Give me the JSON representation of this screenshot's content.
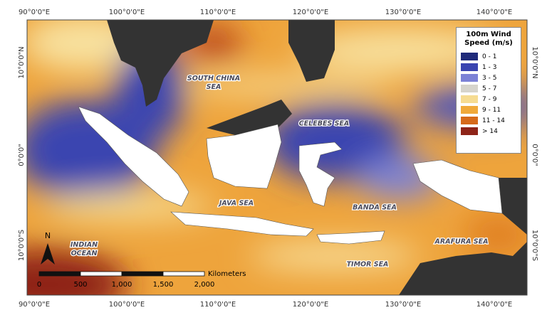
{
  "map": {
    "x_labels": [
      "90°0'0\"E",
      "100°0'0\"E",
      "110°0'0\"E",
      "120°0'0\"E",
      "130°0'0\"E",
      "140°0'0\"E"
    ],
    "y_labels": [
      "10°0'0\"N",
      "0°0'0\"",
      "10°0'0\"S"
    ],
    "sea_labels": [
      "SOUTH CHINA SEA",
      "CELEBES SEA",
      "JAVA SEA",
      "BANDA SEA",
      "INDIAN OCEAN",
      "ARAFURA SEA",
      "TIMOR SEA"
    ],
    "legend": {
      "title": "100m Wind Speed (m/s)",
      "items": [
        {
          "label": "0 - 1",
          "color": "#1f2a7a"
        },
        {
          "label": "1 - 3",
          "color": "#3a44b0"
        },
        {
          "label": "3 - 5",
          "color": "#7c82d6"
        },
        {
          "label": "5 - 7",
          "color": "#d6d4cc"
        },
        {
          "label": "7 - 9",
          "color": "#f6dc92"
        },
        {
          "label": "9 - 11",
          "color": "#f0a93a"
        },
        {
          "label": "11 - 14",
          "color": "#d66a1a"
        },
        {
          "label": "> 14",
          "color": "#8e2418"
        }
      ]
    },
    "scale_bar": {
      "unit": "Kilometers",
      "labels": [
        "0",
        "500",
        "1,000",
        "1,500",
        "2,000"
      ]
    },
    "north": "N"
  }
}
